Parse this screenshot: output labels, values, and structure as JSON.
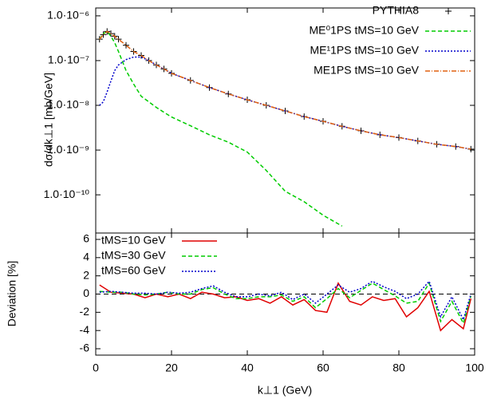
{
  "chart_data": [
    {
      "type": "line",
      "ylabel": "dσ/dk⊥1  [mb/GeV]",
      "log_y": true,
      "xlim": [
        0,
        100
      ],
      "ylim": [
        1.4e-11,
        1.5e-06
      ],
      "yticks": [
        {
          "value": 1e-06,
          "label": "1.0·10⁻⁶"
        },
        {
          "value": 1e-07,
          "label": "1.0·10⁻⁷"
        },
        {
          "value": 1e-08,
          "label": "1.0·10⁻⁸"
        },
        {
          "value": 1e-09,
          "label": "1.0·10⁻⁹"
        },
        {
          "value": 1e-10,
          "label": "1.0·10⁻¹⁰"
        }
      ],
      "legend": "upper right",
      "x": [
        1,
        2,
        3,
        4,
        5,
        6,
        8,
        10,
        12,
        14,
        16,
        18,
        20,
        25,
        30,
        35,
        40,
        45,
        50,
        55,
        60,
        65,
        70,
        75,
        80,
        85,
        90,
        95,
        99
      ],
      "series": [
        {
          "name": "PYTHIA8",
          "color": "#000000",
          "marker": "+",
          "values": [
            3e-07,
            3.8e-07,
            4.5e-07,
            4e-07,
            3.5e-07,
            3e-07,
            2.2e-07,
            1.6e-07,
            1.3e-07,
            1e-07,
            8e-08,
            6.5e-08,
            5.2e-08,
            3.6e-08,
            2.5e-08,
            1.8e-08,
            1.33e-08,
            1e-08,
            7.5e-09,
            5.6e-09,
            4.4e-09,
            3.4e-09,
            2.7e-09,
            2.2e-09,
            1.9e-09,
            1.6e-09,
            1.35e-09,
            1.2e-09,
            1.05e-09
          ]
        },
        {
          "name": "ME⁰1PS tMS=10 GeV",
          "color": "#00cc00",
          "dash": "5,3",
          "values": [
            3e-07,
            4e-07,
            4.5e-07,
            3.5e-07,
            2.5e-07,
            1.6e-07,
            6e-08,
            3e-08,
            1.6e-08,
            1.2e-08,
            9e-09,
            7e-09,
            5.5e-09,
            3.5e-09,
            2.2e-09,
            1.5e-09,
            9e-10,
            3.5e-10,
            1.2e-10,
            7e-11,
            3.5e-11,
            2e-11,
            null,
            null,
            null,
            null,
            null,
            null,
            null
          ]
        },
        {
          "name": "ME¹1PS tMS=10 GeV",
          "color": "#0000cc",
          "dash": "2,2",
          "values": [
            1e-08,
            1.2e-08,
            2e-08,
            3.5e-08,
            6e-08,
            8e-08,
            1.05e-07,
            1.2e-07,
            1.2e-07,
            1e-07,
            8e-08,
            6.5e-08,
            5.2e-08,
            3.6e-08,
            2.5e-08,
            1.8e-08,
            1.33e-08,
            1e-08,
            7.5e-09,
            5.6e-09,
            4.4e-09,
            3.4e-09,
            2.7e-09,
            2.2e-09,
            1.9e-09,
            1.6e-09,
            1.35e-09,
            1.2e-09,
            1.05e-09
          ]
        },
        {
          "name": "ME1PS tMS=10 GeV",
          "color": "#e06010",
          "dash": "6,2,1,2",
          "values": [
            3e-07,
            3.8e-07,
            4.5e-07,
            4e-07,
            3.5e-07,
            3e-07,
            2.2e-07,
            1.6e-07,
            1.3e-07,
            1e-07,
            8e-08,
            6.5e-08,
            5.2e-08,
            3.6e-08,
            2.5e-08,
            1.8e-08,
            1.33e-08,
            1e-08,
            7.5e-09,
            5.6e-09,
            4.4e-09,
            3.4e-09,
            2.7e-09,
            2.2e-09,
            1.9e-09,
            1.6e-09,
            1.35e-09,
            1.2e-09,
            1.05e-09
          ]
        }
      ]
    },
    {
      "type": "line",
      "ylabel": "Deviation [%]",
      "xlabel": "k⊥1 (GeV)",
      "xlim": [
        0,
        100
      ],
      "xticks": [
        0,
        20,
        40,
        60,
        80,
        100
      ],
      "ylim": [
        -6.7,
        6.7
      ],
      "yticks": [
        -6,
        -4,
        -2,
        0,
        2,
        4,
        6
      ],
      "legend": "upper left",
      "x": [
        1,
        4,
        7,
        10,
        13,
        16,
        19,
        22,
        25,
        28,
        31,
        34,
        37,
        40,
        43,
        46,
        49,
        52,
        55,
        58,
        61,
        64,
        67,
        70,
        73,
        76,
        79,
        82,
        85,
        88,
        91,
        94,
        97,
        99
      ],
      "series": [
        {
          "name": "tMS=10 GeV",
          "color": "#e00000",
          "values": [
            1,
            0.2,
            0.1,
            0,
            -0.4,
            0,
            -0.3,
            0,
            -0.5,
            0.2,
            0,
            -0.4,
            -0.3,
            -0.7,
            -0.5,
            -1,
            -0.3,
            -1.2,
            -0.6,
            -1.8,
            -2,
            1.2,
            -0.8,
            -1.2,
            -0.3,
            -0.7,
            -0.5,
            -2.5,
            -1.5,
            0.3,
            -4,
            -2.8,
            -3.8,
            -0.5
          ]
        },
        {
          "name": "tMS=30 GeV",
          "color": "#00cc00",
          "dash": "5,3",
          "values": [
            0.3,
            0.2,
            0.2,
            0,
            -0.1,
            0,
            0.2,
            0,
            0,
            0.5,
            0.7,
            0,
            -0.5,
            -0.5,
            -0.3,
            -0.3,
            -0.1,
            -0.8,
            -0.3,
            -1.5,
            -0.5,
            0.6,
            -0.4,
            0.4,
            1.2,
            0.5,
            -0.2,
            -1,
            -0.8,
            1.2,
            -3,
            -0.8,
            -3.2,
            -0.2
          ]
        },
        {
          "name": "tMS=60 GeV",
          "color": "#0000cc",
          "dash": "2,2",
          "values": [
            0.2,
            0.3,
            0.2,
            0.1,
            0.1,
            0,
            0.2,
            0.1,
            0.2,
            0.6,
            0.9,
            0.2,
            -0.3,
            -0.3,
            0,
            -0.2,
            0.2,
            -0.6,
            0,
            -1,
            0,
            1,
            0.2,
            0.6,
            1.4,
            0.8,
            0.3,
            -0.5,
            0,
            1.4,
            -2.5,
            -0.3,
            -2.8,
            0
          ]
        }
      ]
    }
  ]
}
